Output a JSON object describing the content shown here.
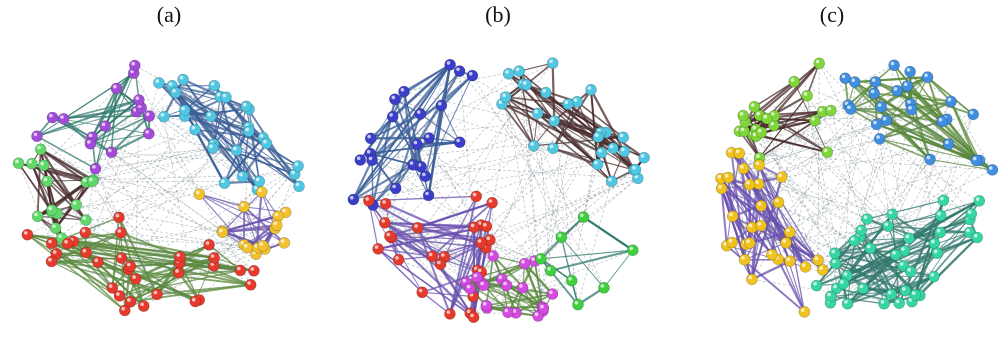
{
  "panels": [
    {
      "label": "(a)",
      "groups": [
        {
          "name": "purple",
          "color": "#a24bd8"
        },
        {
          "name": "cyan",
          "color": "#4fc6e2"
        },
        {
          "name": "green",
          "color": "#5ed96a"
        },
        {
          "name": "yellow",
          "color": "#f2c12e"
        },
        {
          "name": "red",
          "color": "#e53a2c"
        }
      ]
    },
    {
      "label": "(b)",
      "groups": [
        {
          "name": "blue",
          "color": "#3a3ec8"
        },
        {
          "name": "cyan",
          "color": "#4fc6e2"
        },
        {
          "name": "red",
          "color": "#e53a2c"
        },
        {
          "name": "magenta",
          "color": "#d34ae0"
        },
        {
          "name": "green",
          "color": "#3fcf3f"
        }
      ]
    },
    {
      "label": "(c)",
      "groups": [
        {
          "name": "green",
          "color": "#7ed63a"
        },
        {
          "name": "yellow",
          "color": "#f0c21e"
        },
        {
          "name": "blue",
          "color": "#3f8ee0"
        },
        {
          "name": "teal",
          "color": "#35d6a3"
        }
      ]
    }
  ],
  "edge_colors": [
    "#2f7a6e",
    "#3a5e98",
    "#4a2a2a",
    "#6a4fb0",
    "#5a8a3a"
  ]
}
